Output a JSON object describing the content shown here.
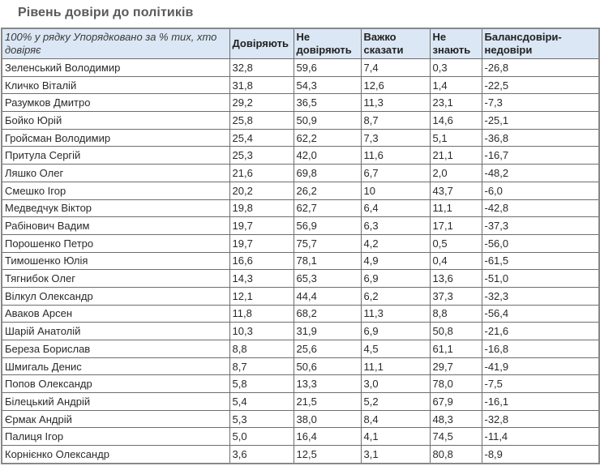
{
  "page": {
    "title": "Рівень довіри до політиків"
  },
  "table": {
    "headers": {
      "lead": "100% у рядку Упорядковано за % тих, хто довіряє",
      "trust": "Довіряють",
      "distrust": "Не довіряють",
      "hard_to_say": "Важко сказати",
      "dont_know": "Не знають",
      "balance": "Балансдовіри-недовіри"
    },
    "rows": [
      {
        "name": "Зеленський Володимир",
        "trust": "32,8",
        "distrust": "59,6",
        "hard": "7,4",
        "dk": "0,3",
        "balance": "-26,8"
      },
      {
        "name": "Кличко Віталій",
        "trust": "31,8",
        "distrust": "54,3",
        "hard": "12,6",
        "dk": "1,4",
        "balance": "-22,5"
      },
      {
        "name": "Разумков Дмитро",
        "trust": "29,2",
        "distrust": "36,5",
        "hard": "11,3",
        "dk": "23,1",
        "balance": "-7,3"
      },
      {
        "name": "Бойко Юрій",
        "trust": "25,8",
        "distrust": "50,9",
        "hard": "8,7",
        "dk": "14,6",
        "balance": "-25,1"
      },
      {
        "name": "Гройсман Володимир",
        "trust": "25,4",
        "distrust": "62,2",
        "hard": "7,3",
        "dk": "5,1",
        "balance": "-36,8"
      },
      {
        "name": "Притула Сергій",
        "trust": "25,3",
        "distrust": "42,0",
        "hard": "11,6",
        "dk": "21,1",
        "balance": "-16,7"
      },
      {
        "name": "Ляшко Олег",
        "trust": "21,6",
        "distrust": "69,8",
        "hard": "6,7",
        "dk": "2,0",
        "balance": "-48,2"
      },
      {
        "name": "Смешко Ігор",
        "trust": "20,2",
        "distrust": "26,2",
        "hard": "10",
        "dk": "43,7",
        "balance": "-6,0"
      },
      {
        "name": "Медведчук Віктор",
        "trust": "19,8",
        "distrust": "62,7",
        "hard": "6,4",
        "dk": "11,1",
        "balance": "-42,8"
      },
      {
        "name": "Рабінович Вадим",
        "trust": "19,7",
        "distrust": "56,9",
        "hard": "6,3",
        "dk": "17,1",
        "balance": "-37,3"
      },
      {
        "name": "Порошенко Петро",
        "trust": "19,7",
        "distrust": "75,7",
        "hard": "4,2",
        "dk": "0,5",
        "balance": "-56,0"
      },
      {
        "name": "Тимошенко Юлія",
        "trust": "16,6",
        "distrust": "78,1",
        "hard": "4,9",
        "dk": "0,4",
        "balance": "-61,5"
      },
      {
        "name": "Тягнибок Олег",
        "trust": "14,3",
        "distrust": "65,3",
        "hard": "6,9",
        "dk": "13,6",
        "balance": "-51,0"
      },
      {
        "name": "Вілкул Олександр",
        "trust": "12,1",
        "distrust": "44,4",
        "hard": "6,2",
        "dk": "37,3",
        "balance": "-32,3"
      },
      {
        "name": "Аваков Арсен",
        "trust": "11,8",
        "distrust": "68,2",
        "hard": "11,3",
        "dk": "8,8",
        "balance": "-56,4"
      },
      {
        "name": "Шарій Анатолій",
        "trust": "10,3",
        "distrust": "31,9",
        "hard": "6,9",
        "dk": "50,8",
        "balance": "-21,6"
      },
      {
        "name": "Береза Борислав",
        "trust": "8,8",
        "distrust": "25,6",
        "hard": "4,5",
        "dk": "61,1",
        "balance": "-16,8"
      },
      {
        "name": "Шмигаль Денис",
        "trust": "8,7",
        "distrust": "50,6",
        "hard": "11,1",
        "dk": "29,7",
        "balance": "-41,9"
      },
      {
        "name": "Попов Олександр",
        "trust": "5,8",
        "distrust": "13,3",
        "hard": "3,0",
        "dk": "78,0",
        "balance": "-7,5"
      },
      {
        "name": "Білецький Андрій",
        "trust": "5,4",
        "distrust": "21,5",
        "hard": "5,2",
        "dk": "67,9",
        "balance": "-16,1"
      },
      {
        "name": "Єрмак Андрій",
        "trust": "5,3",
        "distrust": "38,0",
        "hard": "8,4",
        "dk": "48,3",
        "balance": "-32,8"
      },
      {
        "name": "Палиця Ігор",
        "trust": "5,0",
        "distrust": "16,4",
        "hard": "4,1",
        "dk": "74,5",
        "balance": "-11,4"
      },
      {
        "name": "Корнієнко Олександр",
        "trust": "3,6",
        "distrust": "12,5",
        "hard": "3,1",
        "dk": "80,8",
        "balance": "-8,9"
      }
    ]
  },
  "colors": {
    "header_bg": "#dbe7f4",
    "border": "#6e6e6e",
    "title": "#5a5a5a"
  }
}
